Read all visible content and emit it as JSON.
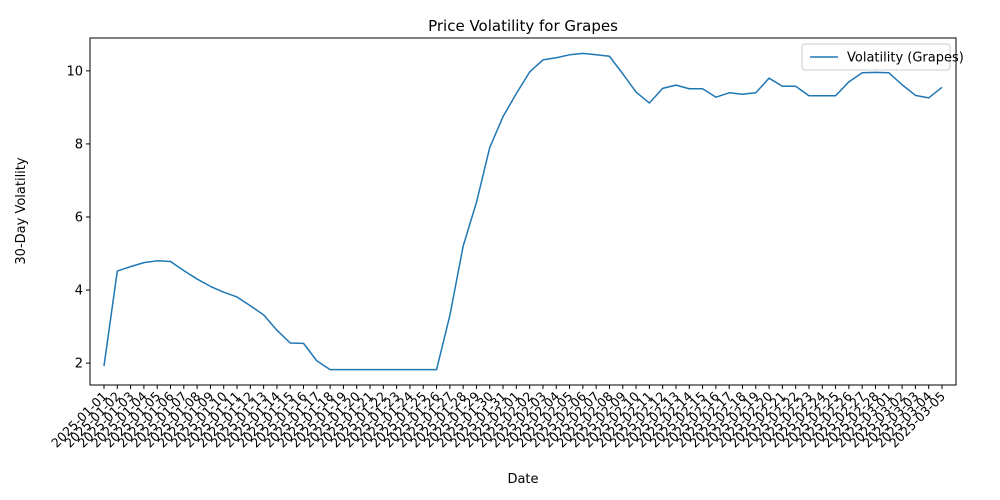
{
  "chart_data": {
    "type": "line",
    "title": "Price Volatility for Grapes",
    "xlabel": "Date",
    "ylabel": "30-Day Volatility",
    "ylim": [
      1.4,
      10.9
    ],
    "yticks": [
      2,
      4,
      6,
      8,
      10
    ],
    "grid": false,
    "legend_position": "top-right",
    "line_color": "#1f77b4",
    "x": [
      "2025-01-01",
      "2025-01-02",
      "2025-01-03",
      "2025-01-04",
      "2025-01-05",
      "2025-01-06",
      "2025-01-07",
      "2025-01-08",
      "2025-01-09",
      "2025-01-10",
      "2025-01-11",
      "2025-01-12",
      "2025-01-13",
      "2025-01-14",
      "2025-01-15",
      "2025-01-16",
      "2025-01-17",
      "2025-01-18",
      "2025-01-19",
      "2025-01-20",
      "2025-01-21",
      "2025-01-22",
      "2025-01-23",
      "2025-01-24",
      "2025-01-25",
      "2025-01-26",
      "2025-01-27",
      "2025-01-28",
      "2025-01-29",
      "2025-01-30",
      "2025-01-31",
      "2025-02-01",
      "2025-02-02",
      "2025-02-03",
      "2025-02-04",
      "2025-02-05",
      "2025-02-06",
      "2025-02-07",
      "2025-02-08",
      "2025-02-09",
      "2025-02-10",
      "2025-02-11",
      "2025-02-12",
      "2025-02-13",
      "2025-02-14",
      "2025-02-15",
      "2025-02-16",
      "2025-02-17",
      "2025-02-18",
      "2025-02-19",
      "2025-02-20",
      "2025-02-21",
      "2025-02-22",
      "2025-02-23",
      "2025-02-24",
      "2025-02-25",
      "2025-02-26",
      "2025-02-27",
      "2025-02-28",
      "2025-03-01",
      "2025-03-02",
      "2025-03-03",
      "2025-03-04",
      "2025-03-05"
    ],
    "series": [
      {
        "name": "Volatility (Grapes)",
        "values": [
          1.92,
          4.52,
          4.64,
          4.75,
          4.8,
          4.78,
          4.53,
          4.3,
          4.1,
          3.94,
          3.81,
          3.57,
          3.32,
          2.9,
          2.55,
          2.54,
          2.06,
          1.82,
          1.82,
          1.82,
          1.82,
          1.82,
          1.82,
          1.82,
          1.82,
          1.82,
          3.3,
          5.2,
          6.4,
          7.9,
          8.75,
          9.38,
          9.97,
          10.3,
          10.36,
          10.44,
          10.48,
          10.44,
          10.4,
          9.92,
          9.42,
          9.12,
          9.52,
          9.61,
          9.51,
          9.51,
          9.28,
          9.4,
          9.36,
          9.4,
          9.8,
          9.58,
          9.58,
          9.32,
          9.32,
          9.32,
          9.7,
          9.95,
          9.96,
          9.95,
          9.62,
          9.33,
          9.26,
          9.55
        ]
      }
    ]
  }
}
